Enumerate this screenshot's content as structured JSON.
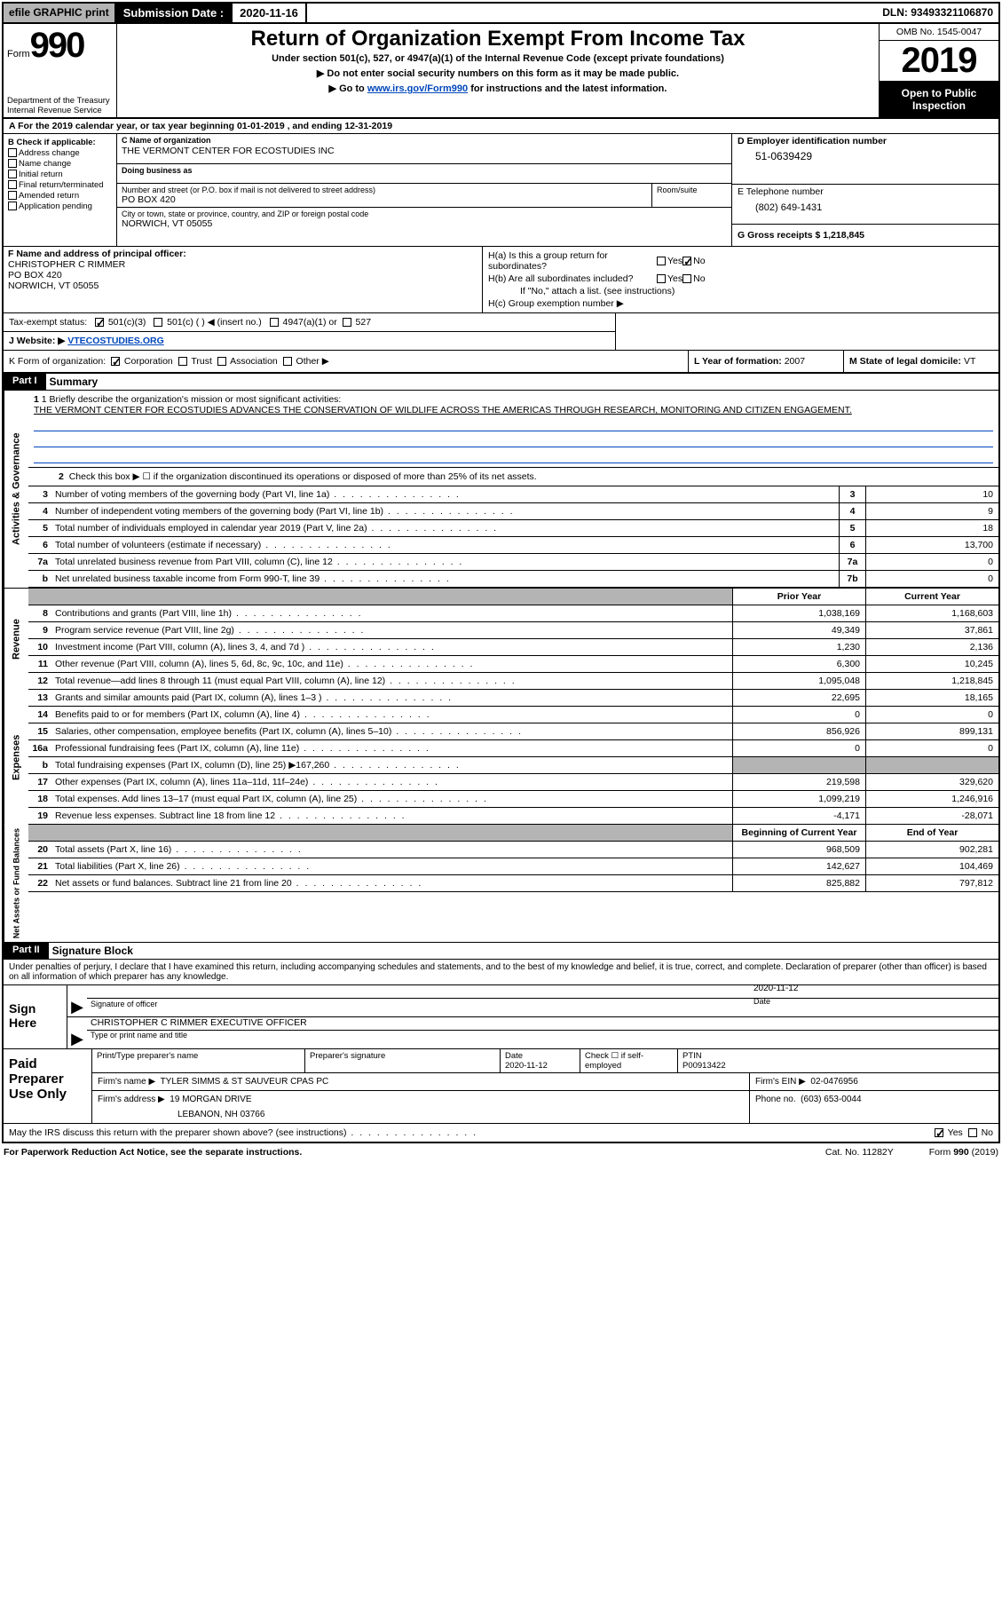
{
  "top": {
    "efile": "efile GRAPHIC",
    "print": "print",
    "submission_label": "Submission Date :",
    "submission_date": "2020-11-16",
    "dln": "DLN: 93493321106870"
  },
  "header": {
    "form_word": "Form",
    "form_num": "990",
    "dept": "Department of the Treasury\nInternal Revenue Service",
    "title": "Return of Organization Exempt From Income Tax",
    "sub1": "Under section 501(c), 527, or 4947(a)(1) of the Internal Revenue Code (except private foundations)",
    "sub2": "▶ Do not enter social security numbers on this form as it may be made public.",
    "sub3_pre": "▶ Go to ",
    "sub3_link": "www.irs.gov/Form990",
    "sub3_post": " for instructions and the latest information.",
    "omb": "OMB No. 1545-0047",
    "year": "2019",
    "inspect": "Open to Public Inspection"
  },
  "period": "A For the 2019 calendar year, or tax year beginning 01-01-2019    , and ending 12-31-2019",
  "b": {
    "label": "B Check if applicable:",
    "items": [
      "Address change",
      "Name change",
      "Initial return",
      "Final return/terminated",
      "Amended return",
      "Application pending"
    ]
  },
  "c": {
    "name_lbl": "C Name of organization",
    "name": "THE VERMONT CENTER FOR ECOSTUDIES INC",
    "dba_lbl": "Doing business as",
    "dba": "",
    "addr_lbl": "Number and street (or P.O. box if mail is not delivered to street address)",
    "addr": "PO BOX 420",
    "suite_lbl": "Room/suite",
    "city_lbl": "City or town, state or province, country, and ZIP or foreign postal code",
    "city": "NORWICH, VT  05055"
  },
  "d": {
    "lbl": "D Employer identification number",
    "val": "51-0639429"
  },
  "e": {
    "lbl": "E Telephone number",
    "val": "(802) 649-1431"
  },
  "g": {
    "text": "G Gross receipts $ 1,218,845"
  },
  "f": {
    "lbl": "F Name and address of principal officer:",
    "line1": "CHRISTOPHER C RIMMER",
    "line2": "PO BOX 420",
    "line3": "NORWICH, VT  05055"
  },
  "h": {
    "a_lbl": "H(a)  Is this a group return for subordinates?",
    "b_lbl": "H(b)  Are all subordinates included?",
    "note": "If \"No,\" attach a list. (see instructions)",
    "c_lbl": "H(c)  Group exemption number ▶"
  },
  "i": {
    "lbl": "Tax-exempt status:",
    "opt1": "501(c)(3)",
    "opt2": "501(c) (   ) ◀ (insert no.)",
    "opt3": "4947(a)(1) or",
    "opt4": "527"
  },
  "j": {
    "lbl": "J    Website: ▶",
    "val": "VTECOSTUDIES.ORG"
  },
  "k": {
    "lbl": "K Form of organization:",
    "opts": [
      "Corporation",
      "Trust",
      "Association",
      "Other ▶"
    ]
  },
  "l": {
    "lbl": "L Year of formation:",
    "val": "2007"
  },
  "m": {
    "lbl": "M State of legal domicile:",
    "val": "VT"
  },
  "part1": {
    "hdr": "Part I",
    "title": "Summary",
    "tabs": {
      "ag": "Activities & Governance",
      "rev": "Revenue",
      "exp": "Expenses",
      "na": "Net Assets or Fund Balances"
    },
    "q1": "1 Briefly describe the organization's mission or most significant activities:",
    "mission": "THE VERMONT CENTER FOR ECOSTUDIES ADVANCES THE CONSERVATION OF WILDLIFE ACROSS THE AMERICAS THROUGH RESEARCH, MONITORING AND CITIZEN ENGAGEMENT.",
    "q2": "Check this box ▶ ☐  if the organization discontinued its operations or disposed of more than 25% of its net assets.",
    "rows_ag": [
      {
        "n": "3",
        "desc": "Number of voting members of the governing body (Part VI, line 1a)",
        "box": "3",
        "val": "10"
      },
      {
        "n": "4",
        "desc": "Number of independent voting members of the governing body (Part VI, line 1b)",
        "box": "4",
        "val": "9"
      },
      {
        "n": "5",
        "desc": "Total number of individuals employed in calendar year 2019 (Part V, line 2a)",
        "box": "5",
        "val": "18"
      },
      {
        "n": "6",
        "desc": "Total number of volunteers (estimate if necessary)",
        "box": "6",
        "val": "13,700"
      },
      {
        "n": "7a",
        "desc": "Total unrelated business revenue from Part VIII, column (C), line 12",
        "box": "7a",
        "val": "0"
      },
      {
        "n": "b",
        "desc": "Net unrelated business taxable income from Form 990-T, line 39",
        "box": "7b",
        "val": "0"
      }
    ],
    "py_lbl": "Prior Year",
    "cy_lbl": "Current Year",
    "rows_rev": [
      {
        "n": "8",
        "desc": "Contributions and grants (Part VIII, line 1h)",
        "py": "1,038,169",
        "cy": "1,168,603"
      },
      {
        "n": "9",
        "desc": "Program service revenue (Part VIII, line 2g)",
        "py": "49,349",
        "cy": "37,861"
      },
      {
        "n": "10",
        "desc": "Investment income (Part VIII, column (A), lines 3, 4, and 7d )",
        "py": "1,230",
        "cy": "2,136"
      },
      {
        "n": "11",
        "desc": "Other revenue (Part VIII, column (A), lines 5, 6d, 8c, 9c, 10c, and 11e)",
        "py": "6,300",
        "cy": "10,245"
      },
      {
        "n": "12",
        "desc": "Total revenue—add lines 8 through 11 (must equal Part VIII, column (A), line 12)",
        "py": "1,095,048",
        "cy": "1,218,845"
      }
    ],
    "rows_exp": [
      {
        "n": "13",
        "desc": "Grants and similar amounts paid (Part IX, column (A), lines 1–3 )",
        "py": "22,695",
        "cy": "18,165"
      },
      {
        "n": "14",
        "desc": "Benefits paid to or for members (Part IX, column (A), line 4)",
        "py": "0",
        "cy": "0"
      },
      {
        "n": "15",
        "desc": "Salaries, other compensation, employee benefits (Part IX, column (A), lines 5–10)",
        "py": "856,926",
        "cy": "899,131"
      },
      {
        "n": "16a",
        "desc": "Professional fundraising fees (Part IX, column (A), line 11e)",
        "py": "0",
        "cy": "0"
      },
      {
        "n": "b",
        "desc": "Total fundraising expenses (Part IX, column (D), line 25) ▶167,260",
        "py": "",
        "cy": "",
        "grey": true
      },
      {
        "n": "17",
        "desc": "Other expenses (Part IX, column (A), lines 11a–11d, 11f–24e)",
        "py": "219,598",
        "cy": "329,620"
      },
      {
        "n": "18",
        "desc": "Total expenses. Add lines 13–17 (must equal Part IX, column (A), line 25)",
        "py": "1,099,219",
        "cy": "1,246,916"
      },
      {
        "n": "19",
        "desc": "Revenue less expenses. Subtract line 18 from line 12",
        "py": "-4,171",
        "cy": "-28,071"
      }
    ],
    "na_py_lbl": "Beginning of Current Year",
    "na_cy_lbl": "End of Year",
    "rows_na": [
      {
        "n": "20",
        "desc": "Total assets (Part X, line 16)",
        "py": "968,509",
        "cy": "902,281"
      },
      {
        "n": "21",
        "desc": "Total liabilities (Part X, line 26)",
        "py": "142,627",
        "cy": "104,469"
      },
      {
        "n": "22",
        "desc": "Net assets or fund balances. Subtract line 21 from line 20",
        "py": "825,882",
        "cy": "797,812"
      }
    ]
  },
  "part2": {
    "hdr": "Part II",
    "title": "Signature Block",
    "decl": "Under penalties of perjury, I declare that I have examined this return, including accompanying schedules and statements, and to the best of my knowledge and belief, it is true, correct, and complete. Declaration of preparer (other than officer) is based on all information of which preparer has any knowledge.",
    "sign_here": "Sign Here",
    "sig_of_officer": "Signature of officer",
    "date_lbl": "Date",
    "sig_date": "2020-11-12",
    "name_title": "CHRISTOPHER C RIMMER  EXECUTIVE OFFICER",
    "type_lbl": "Type or print name and title",
    "paid": "Paid Preparer Use Only",
    "prep_name_lbl": "Print/Type preparer's name",
    "prep_sig_lbl": "Preparer's signature",
    "prep_date_lbl": "Date",
    "prep_date": "2020-11-12",
    "self_emp": "Check ☐ if self-employed",
    "ptin_lbl": "PTIN",
    "ptin": "P00913422",
    "firm_name_lbl": "Firm's name     ▶",
    "firm_name": "TYLER SIMMS & ST SAUVEUR CPAS PC",
    "firm_ein_lbl": "Firm's EIN ▶",
    "firm_ein": "02-0476956",
    "firm_addr_lbl": "Firm's address ▶",
    "firm_addr1": "19 MORGAN DRIVE",
    "firm_addr2": "LEBANON, NH  03766",
    "phone_lbl": "Phone no.",
    "phone": "(603) 653-0044",
    "discuss": "May the IRS discuss this return with the preparer shown above? (see instructions)"
  },
  "footer": {
    "left": "For Paperwork Reduction Act Notice, see the separate instructions.",
    "mid": "Cat. No. 11282Y",
    "right": "Form 990 (2019)"
  }
}
